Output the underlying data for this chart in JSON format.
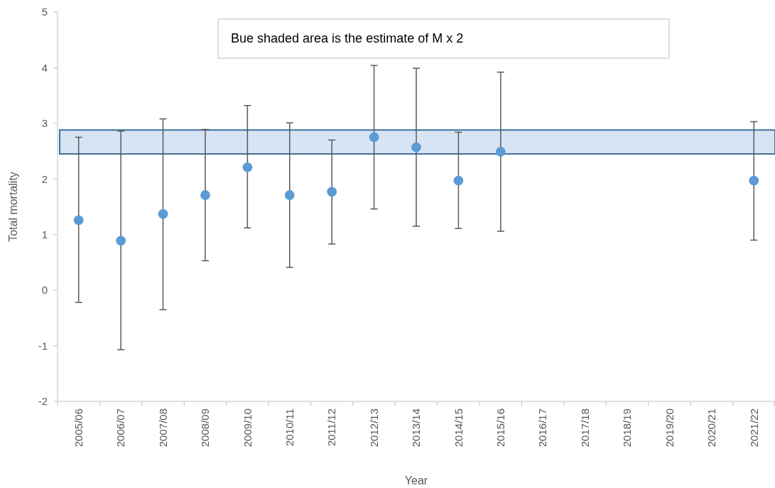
{
  "chart_data": {
    "type": "scatter",
    "xlabel": "Year",
    "ylabel": "Total mortality",
    "categories": [
      "2005/06",
      "2006/07",
      "2007/08",
      "2008/09",
      "2009/10",
      "2010/11",
      "2011/12",
      "2012/13",
      "2013/14",
      "2014/15",
      "2015/16",
      "2016/17",
      "2017/18",
      "2018/19",
      "2019/20",
      "2020/21",
      "2021/22"
    ],
    "values": [
      1.26,
      0.89,
      1.37,
      1.71,
      2.21,
      1.71,
      1.77,
      2.75,
      2.57,
      1.97,
      2.49,
      null,
      null,
      null,
      null,
      null,
      1.97
    ],
    "errors": [
      [
        -0.22,
        2.75
      ],
      [
        -1.07,
        2.86
      ],
      [
        -0.35,
        3.08
      ],
      [
        0.53,
        2.89
      ],
      [
        1.12,
        3.32
      ],
      [
        0.41,
        3.01
      ],
      [
        0.83,
        2.7
      ],
      [
        1.46,
        4.04
      ],
      [
        1.15,
        3.99
      ],
      [
        1.11,
        2.84
      ],
      [
        1.06,
        3.92
      ],
      null,
      null,
      null,
      null,
      null,
      [
        0.9,
        3.03
      ]
    ],
    "color": "#5b9bd5",
    "marker": "circle",
    "ylim": [
      -2,
      5
    ],
    "yticks": [
      -2,
      -1,
      0,
      1,
      2,
      3,
      4,
      5
    ],
    "grid": false,
    "bands": [
      {
        "axis": "y",
        "from": 2.45,
        "to": 2.88,
        "color": "#d6e4f4"
      }
    ],
    "annotations": [
      "Bue shaded area is the estimate of M x 2"
    ]
  }
}
